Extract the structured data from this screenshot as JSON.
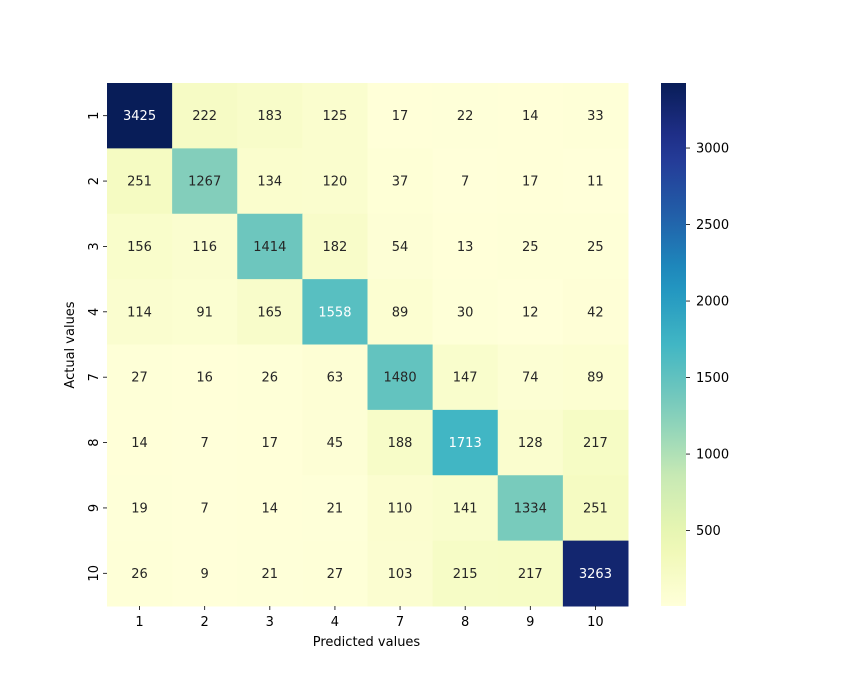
{
  "chart_data": {
    "type": "heatmap",
    "xlabel": "Predicted values",
    "ylabel": "Actual values",
    "x_categories": [
      "1",
      "2",
      "3",
      "4",
      "7",
      "8",
      "9",
      "10"
    ],
    "y_categories": [
      "1",
      "2",
      "3",
      "4",
      "7",
      "8",
      "9",
      "10"
    ],
    "matrix": [
      [
        3425,
        222,
        183,
        125,
        17,
        22,
        14,
        33
      ],
      [
        251,
        1267,
        134,
        120,
        37,
        7,
        17,
        11
      ],
      [
        156,
        116,
        1414,
        182,
        54,
        13,
        25,
        25
      ],
      [
        114,
        91,
        165,
        1558,
        89,
        30,
        12,
        42
      ],
      [
        27,
        16,
        26,
        63,
        1480,
        147,
        74,
        89
      ],
      [
        14,
        7,
        17,
        45,
        188,
        1713,
        128,
        217
      ],
      [
        19,
        7,
        14,
        21,
        110,
        141,
        1334,
        251
      ],
      [
        26,
        9,
        21,
        27,
        103,
        215,
        217,
        3263
      ]
    ],
    "colormap": "YlGnBu",
    "colorbar": {
      "ticks": [
        500,
        1000,
        1500,
        2000,
        2500,
        3000
      ],
      "tick_labels": [
        "500",
        "1000",
        "1500",
        "2000",
        "2500",
        "3000"
      ]
    },
    "vmin": 7,
    "vmax": 3425,
    "grid": false,
    "legend": "colorbar-right"
  }
}
